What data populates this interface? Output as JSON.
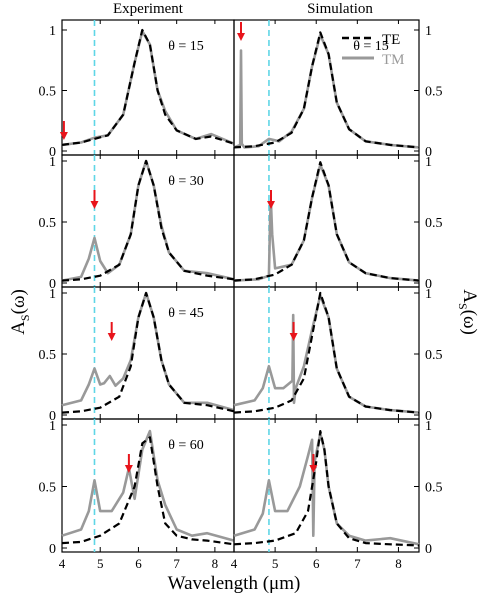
{
  "figure": {
    "col_titles": [
      "Experiment",
      "Simulation"
    ],
    "ylabel_left": "A",
    "ylabel_left_sub": "S",
    "ylabel_left_tail": "(ω)",
    "ylabel_right": "A",
    "ylabel_right_sub": "S",
    "ylabel_right_tail": "(ω)",
    "xlabel": "Wavelength (μm)",
    "legend": {
      "te": "TE",
      "tm": "TM"
    },
    "colors": {
      "te": "#000000",
      "tm": "#999999",
      "arrow": "#e8141b",
      "ref": "#5fd6e6"
    }
  },
  "chart_data": [
    {
      "type": "line",
      "panel": "Experiment",
      "annotation": "θ = 15",
      "xlim": [
        4,
        8.5
      ],
      "ylim": [
        0,
        1
      ],
      "xticks": [
        "4",
        "5",
        "6",
        "7",
        "8"
      ],
      "yticks": [
        "0",
        "0.5",
        "1"
      ],
      "ref_line_x": 4.85,
      "arrows_x": [
        4.05
      ],
      "series": [
        {
          "name": "TE",
          "x": [
            4,
            4.5,
            4.85,
            5.2,
            5.6,
            5.9,
            6.1,
            6.3,
            6.5,
            6.7,
            7.0,
            7.5,
            7.9,
            8.5
          ],
          "y": [
            0.05,
            0.07,
            0.1,
            0.13,
            0.3,
            0.73,
            1.0,
            0.88,
            0.5,
            0.3,
            0.17,
            0.1,
            0.12,
            0.06
          ]
        },
        {
          "name": "TM",
          "x": [
            4,
            4.5,
            4.85,
            5.2,
            5.6,
            5.9,
            6.1,
            6.3,
            6.5,
            6.7,
            7.0,
            7.5,
            7.9,
            8.5
          ],
          "y": [
            0.05,
            0.07,
            0.11,
            0.13,
            0.3,
            0.73,
            0.99,
            0.88,
            0.5,
            0.33,
            0.17,
            0.1,
            0.14,
            0.06
          ]
        }
      ]
    },
    {
      "type": "line",
      "panel": "Simulation",
      "annotation": "θ = 15",
      "xlim": [
        4,
        8.5
      ],
      "ylim": [
        0,
        1
      ],
      "xticks": [
        "4",
        "5",
        "6",
        "7",
        "8"
      ],
      "yticks": [
        "0",
        "0.5",
        "1"
      ],
      "ref_line_x": 4.85,
      "arrows_x": [
        4.17
      ],
      "series": [
        {
          "name": "TE",
          "x": [
            4,
            4.5,
            5.0,
            5.4,
            5.7,
            5.9,
            6.1,
            6.3,
            6.5,
            6.8,
            7.2,
            7.8,
            8.5
          ],
          "y": [
            0.03,
            0.04,
            0.07,
            0.15,
            0.35,
            0.7,
            0.98,
            0.8,
            0.4,
            0.18,
            0.08,
            0.05,
            0.03
          ]
        },
        {
          "name": "TM",
          "x": [
            4,
            4.15,
            4.17,
            4.19,
            4.25,
            4.6,
            4.85,
            5.1,
            5.4,
            5.7,
            5.9,
            6.1,
            6.3,
            6.5,
            6.8,
            7.2,
            7.8,
            8.5
          ],
          "y": [
            0.03,
            0.05,
            0.83,
            0.06,
            0.03,
            0.04,
            0.1,
            0.08,
            0.16,
            0.35,
            0.7,
            0.96,
            0.8,
            0.4,
            0.18,
            0.08,
            0.05,
            0.03
          ]
        }
      ]
    },
    {
      "type": "line",
      "panel": "Experiment",
      "annotation": "θ = 30",
      "xlim": [
        4,
        8.5
      ],
      "ylim": [
        0,
        1
      ],
      "xticks": [
        "4",
        "5",
        "6",
        "7",
        "8"
      ],
      "yticks": [
        "0",
        "0.5",
        "1"
      ],
      "ref_line_x": 4.85,
      "arrows_x": [
        4.85
      ],
      "series": [
        {
          "name": "TE",
          "x": [
            4,
            4.5,
            5.0,
            5.5,
            5.8,
            6.0,
            6.2,
            6.4,
            6.6,
            6.8,
            7.2,
            7.8,
            8.5
          ],
          "y": [
            0.02,
            0.03,
            0.06,
            0.15,
            0.4,
            0.8,
            1.0,
            0.8,
            0.45,
            0.25,
            0.1,
            0.06,
            0.03
          ]
        },
        {
          "name": "TM",
          "x": [
            4,
            4.5,
            4.7,
            4.85,
            5.0,
            5.2,
            5.5,
            5.8,
            6.0,
            6.2,
            6.4,
            6.6,
            6.8,
            7.2,
            7.8,
            8.5
          ],
          "y": [
            0.02,
            0.05,
            0.2,
            0.37,
            0.18,
            0.08,
            0.15,
            0.4,
            0.8,
            1.0,
            0.8,
            0.47,
            0.25,
            0.1,
            0.08,
            0.03
          ]
        }
      ]
    },
    {
      "type": "line",
      "panel": "Simulation",
      "annotation": "",
      "xlim": [
        4,
        8.5
      ],
      "ylim": [
        0,
        1
      ],
      "xticks": [
        "4",
        "5",
        "6",
        "7",
        "8"
      ],
      "yticks": [
        "0",
        "0.5",
        "1"
      ],
      "ref_line_x": 4.85,
      "arrows_x": [
        4.9
      ],
      "series": [
        {
          "name": "TE",
          "x": [
            4,
            4.5,
            5.0,
            5.4,
            5.7,
            5.9,
            6.1,
            6.3,
            6.5,
            6.8,
            7.2,
            7.8,
            8.5
          ],
          "y": [
            0.02,
            0.03,
            0.07,
            0.15,
            0.35,
            0.7,
            0.99,
            0.8,
            0.4,
            0.17,
            0.08,
            0.04,
            0.02
          ]
        },
        {
          "name": "TM",
          "x": [
            4,
            4.6,
            4.85,
            4.88,
            4.9,
            4.93,
            5.0,
            5.4,
            5.7,
            5.9,
            6.1,
            6.3,
            6.5,
            6.8,
            7.2,
            7.8,
            8.5
          ],
          "y": [
            0.02,
            0.03,
            0.06,
            0.55,
            0.65,
            0.4,
            0.12,
            0.15,
            0.35,
            0.7,
            0.97,
            0.8,
            0.4,
            0.17,
            0.08,
            0.04,
            0.02
          ]
        }
      ]
    },
    {
      "type": "line",
      "panel": "Experiment",
      "annotation": "θ = 45",
      "xlim": [
        4,
        8.5
      ],
      "ylim": [
        0,
        1
      ],
      "xticks": [
        "4",
        "5",
        "6",
        "7",
        "8"
      ],
      "yticks": [
        "0",
        "0.5",
        "1"
      ],
      "ref_line_x": 4.85,
      "arrows_x": [
        5.3
      ],
      "series": [
        {
          "name": "TE",
          "x": [
            4,
            4.5,
            5.0,
            5.5,
            5.8,
            6.0,
            6.2,
            6.4,
            6.6,
            6.8,
            7.2,
            7.8,
            8.5
          ],
          "y": [
            0.02,
            0.03,
            0.06,
            0.15,
            0.4,
            0.8,
            1.0,
            0.8,
            0.45,
            0.25,
            0.1,
            0.08,
            0.03
          ]
        },
        {
          "name": "TM",
          "x": [
            4,
            4.5,
            4.7,
            4.85,
            5.0,
            5.1,
            5.25,
            5.4,
            5.6,
            5.8,
            6.0,
            6.2,
            6.4,
            6.6,
            6.8,
            7.2,
            7.8,
            8.5
          ],
          "y": [
            0.08,
            0.12,
            0.25,
            0.38,
            0.25,
            0.26,
            0.32,
            0.24,
            0.3,
            0.45,
            0.8,
            1.0,
            0.8,
            0.45,
            0.25,
            0.1,
            0.1,
            0.04
          ]
        }
      ]
    },
    {
      "type": "line",
      "panel": "Simulation",
      "annotation": "",
      "xlim": [
        4,
        8.5
      ],
      "ylim": [
        0,
        1
      ],
      "xticks": [
        "4",
        "5",
        "6",
        "7",
        "8"
      ],
      "yticks": [
        "0",
        "0.5",
        "1"
      ],
      "ref_line_x": 4.85,
      "arrows_x": [
        5.45
      ],
      "series": [
        {
          "name": "TE",
          "x": [
            4,
            4.5,
            5.0,
            5.4,
            5.7,
            5.9,
            6.1,
            6.3,
            6.5,
            6.8,
            7.2,
            7.8,
            8.5
          ],
          "y": [
            0.02,
            0.03,
            0.06,
            0.12,
            0.3,
            0.65,
            1.0,
            0.8,
            0.38,
            0.15,
            0.07,
            0.04,
            0.02
          ]
        },
        {
          "name": "TM",
          "x": [
            4,
            4.5,
            4.7,
            4.85,
            5.0,
            5.2,
            5.42,
            5.44,
            5.46,
            5.5,
            5.7,
            5.9,
            6.1,
            6.3,
            6.5,
            6.8,
            7.2,
            7.8,
            8.5
          ],
          "y": [
            0.08,
            0.12,
            0.22,
            0.4,
            0.22,
            0.22,
            0.28,
            0.82,
            0.1,
            0.22,
            0.4,
            0.7,
            0.98,
            0.8,
            0.38,
            0.15,
            0.07,
            0.04,
            0.02
          ]
        }
      ]
    },
    {
      "type": "line",
      "panel": "Experiment",
      "annotation": "θ = 60",
      "xlim": [
        4,
        8.5
      ],
      "ylim": [
        0,
        1
      ],
      "xticks": [
        "4",
        "5",
        "6",
        "7",
        "8"
      ],
      "yticks": [
        "0",
        "0.5",
        "1"
      ],
      "ref_line_x": 4.85,
      "arrows_x": [
        5.75
      ],
      "series": [
        {
          "name": "TE",
          "x": [
            4,
            4.5,
            5.0,
            5.5,
            5.9,
            6.1,
            6.3,
            6.5,
            6.7,
            7.0,
            7.4,
            7.8,
            8.5
          ],
          "y": [
            0.04,
            0.05,
            0.1,
            0.2,
            0.5,
            0.85,
            0.9,
            0.5,
            0.2,
            0.1,
            0.07,
            0.06,
            0.03
          ]
        },
        {
          "name": "TM",
          "x": [
            4,
            4.5,
            4.7,
            4.85,
            5.0,
            5.3,
            5.6,
            5.75,
            5.9,
            6.1,
            6.3,
            6.5,
            6.7,
            7.0,
            7.4,
            7.8,
            8.5
          ],
          "y": [
            0.1,
            0.15,
            0.3,
            0.55,
            0.3,
            0.3,
            0.45,
            0.65,
            0.4,
            0.8,
            0.95,
            0.55,
            0.35,
            0.15,
            0.1,
            0.12,
            0.06
          ]
        }
      ]
    },
    {
      "type": "line",
      "panel": "Simulation",
      "annotation": "",
      "xlim": [
        4,
        8.5
      ],
      "ylim": [
        0,
        1
      ],
      "xticks": [
        "4",
        "5",
        "6",
        "7",
        "8"
      ],
      "yticks": [
        "0",
        "0.5",
        "1"
      ],
      "ref_line_x": 4.85,
      "arrows_x": [
        5.93
      ],
      "series": [
        {
          "name": "TE",
          "x": [
            4,
            4.5,
            5.0,
            5.5,
            5.8,
            6.0,
            6.1,
            6.2,
            6.3,
            6.5,
            6.8,
            7.2,
            7.8,
            8.5
          ],
          "y": [
            0.03,
            0.04,
            0.06,
            0.12,
            0.3,
            0.7,
            0.95,
            0.8,
            0.5,
            0.2,
            0.08,
            0.04,
            0.03,
            0.02
          ]
        },
        {
          "name": "TM",
          "x": [
            4,
            4.5,
            4.7,
            4.85,
            5.0,
            5.3,
            5.6,
            5.8,
            5.9,
            5.93,
            5.96,
            6.1,
            6.2,
            6.3,
            6.5,
            6.8,
            7.2,
            7.8,
            8.5
          ],
          "y": [
            0.1,
            0.15,
            0.28,
            0.55,
            0.3,
            0.3,
            0.5,
            0.75,
            0.88,
            0.1,
            0.7,
            0.93,
            0.8,
            0.5,
            0.2,
            0.1,
            0.06,
            0.08,
            0.03
          ]
        }
      ]
    }
  ]
}
